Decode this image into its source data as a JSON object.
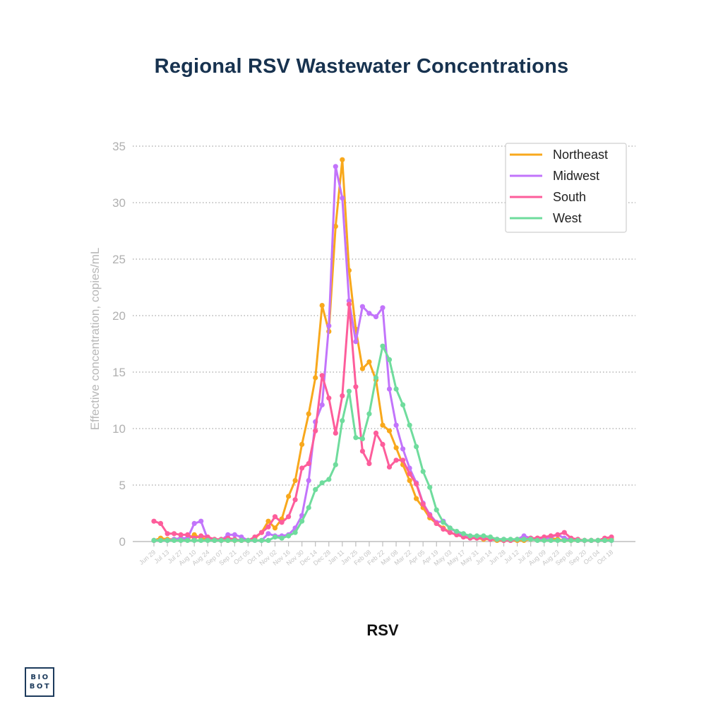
{
  "header": {
    "title": "Regional RSV Wastewater Concentrations"
  },
  "footer": {
    "logo_line1": "BIO",
    "logo_line2": "BOT"
  },
  "chart_data": {
    "type": "line",
    "title": "Regional RSV Wastewater Concentrations",
    "xlabel": "RSV",
    "ylabel": "Effective concentration, copies/mL",
    "ylim": [
      0,
      35
    ],
    "yticks": [
      0,
      5,
      10,
      15,
      20,
      25,
      30,
      35
    ],
    "grid": "horizontal-dotted",
    "legend_position": "top-right",
    "x_tick_labels": [
      "Jun 29",
      "Jul 13",
      "Jul 27",
      "Aug 10",
      "Aug 24",
      "Sep 07",
      "Sep 21",
      "Oct 05",
      "Oct 19",
      "Nov 02",
      "Nov 16",
      "Nov 30",
      "Dec 14",
      "Dec 28",
      "Jan 11",
      "Jan 25",
      "Feb 08",
      "Feb 22",
      "Mar 08",
      "Mar 22",
      "Apr 05",
      "Apr 19",
      "May 03",
      "May 17",
      "May 31",
      "Jun 14",
      "Jun 28",
      "Jul 12",
      "Jul 26",
      "Aug 09",
      "Aug 23",
      "Sep 06",
      "Sep 20",
      "Oct 04",
      "Oct 18"
    ],
    "x_point_interval": "weekly (2 points per labeled tick)",
    "series": [
      {
        "name": "Northeast",
        "color": "#f8a81c",
        "values": [
          0.1,
          0.3,
          0.2,
          0.2,
          0.3,
          0.2,
          0.6,
          0.3,
          0.2,
          0.1,
          0.1,
          0.1,
          0.1,
          0.1,
          0.1,
          0.3,
          0.8,
          1.8,
          1.2,
          2.0,
          4.0,
          5.4,
          8.6,
          11.3,
          14.5,
          20.9,
          18.6,
          27.9,
          33.8,
          24.0,
          18.8,
          15.3,
          15.9,
          14.3,
          10.3,
          9.8,
          8.3,
          6.8,
          5.4,
          3.8,
          3.0,
          2.1,
          1.6,
          1.2,
          0.8,
          0.6,
          0.5,
          0.4,
          0.3,
          0.2,
          0.2,
          0.1,
          0.1,
          0.1,
          0.1,
          0.1,
          0.2,
          0.3,
          0.3,
          0.3,
          0.2,
          0.1,
          0.1,
          0.1,
          0.1,
          0.1,
          0.1,
          0.1,
          0.2
        ]
      },
      {
        "name": "Midwest",
        "color": "#c274fb",
        "values": [
          0.1,
          0.1,
          0.1,
          0.2,
          0.3,
          0.3,
          1.6,
          1.8,
          0.2,
          0.1,
          0.1,
          0.6,
          0.6,
          0.4,
          0.1,
          0.1,
          0.1,
          0.7,
          0.5,
          0.5,
          0.6,
          1.2,
          2.3,
          5.4,
          10.6,
          12.1,
          19.1,
          33.2,
          30.4,
          21.3,
          17.7,
          20.8,
          20.2,
          19.9,
          20.7,
          13.5,
          10.3,
          8.2,
          6.5,
          5.2,
          3.4,
          2.4,
          1.7,
          1.8,
          1.2,
          0.8,
          0.5,
          0.5,
          0.4,
          0.3,
          0.2,
          0.2,
          0.2,
          0.1,
          0.2,
          0.5,
          0.3,
          0.2,
          0.2,
          0.4,
          0.6,
          0.3,
          0.2,
          0.1,
          0.1,
          0.1,
          0.1,
          0.1,
          0.1
        ]
      },
      {
        "name": "South",
        "color": "#fd5d9b",
        "values": [
          1.8,
          1.6,
          0.7,
          0.7,
          0.6,
          0.6,
          0.3,
          0.5,
          0.4,
          0.2,
          0.2,
          0.3,
          0.2,
          0.1,
          0.1,
          0.4,
          0.8,
          1.3,
          2.2,
          1.7,
          2.2,
          3.7,
          6.5,
          6.9,
          9.8,
          14.7,
          12.7,
          9.6,
          12.9,
          21.0,
          13.7,
          8.0,
          6.9,
          9.6,
          8.6,
          6.6,
          7.2,
          7.2,
          6.0,
          5.1,
          3.3,
          2.3,
          1.6,
          1.1,
          0.8,
          0.6,
          0.4,
          0.3,
          0.3,
          0.3,
          0.2,
          0.2,
          0.1,
          0.1,
          0.2,
          0.2,
          0.3,
          0.3,
          0.4,
          0.5,
          0.6,
          0.8,
          0.3,
          0.2,
          0.1,
          0.1,
          0.1,
          0.3,
          0.4
        ]
      },
      {
        "name": "West",
        "color": "#6fdc9d",
        "values": [
          0.1,
          0.1,
          0.1,
          0.1,
          0.1,
          0.1,
          0.1,
          0.1,
          0.1,
          0.1,
          0.1,
          0.1,
          0.1,
          0.1,
          0.1,
          0.1,
          0.1,
          0.1,
          0.4,
          0.3,
          0.5,
          0.8,
          1.8,
          3.0,
          4.6,
          5.2,
          5.5,
          6.8,
          10.7,
          13.3,
          9.2,
          9.1,
          11.3,
          14.5,
          17.3,
          16.1,
          13.5,
          12.1,
          10.3,
          8.4,
          6.2,
          4.8,
          2.8,
          1.7,
          1.2,
          0.9,
          0.7,
          0.5,
          0.5,
          0.5,
          0.4,
          0.2,
          0.2,
          0.2,
          0.2,
          0.2,
          0.2,
          0.1,
          0.1,
          0.1,
          0.1,
          0.1,
          0.1,
          0.1,
          0.1,
          0.1,
          0.1,
          0.1,
          0.1
        ]
      }
    ]
  }
}
